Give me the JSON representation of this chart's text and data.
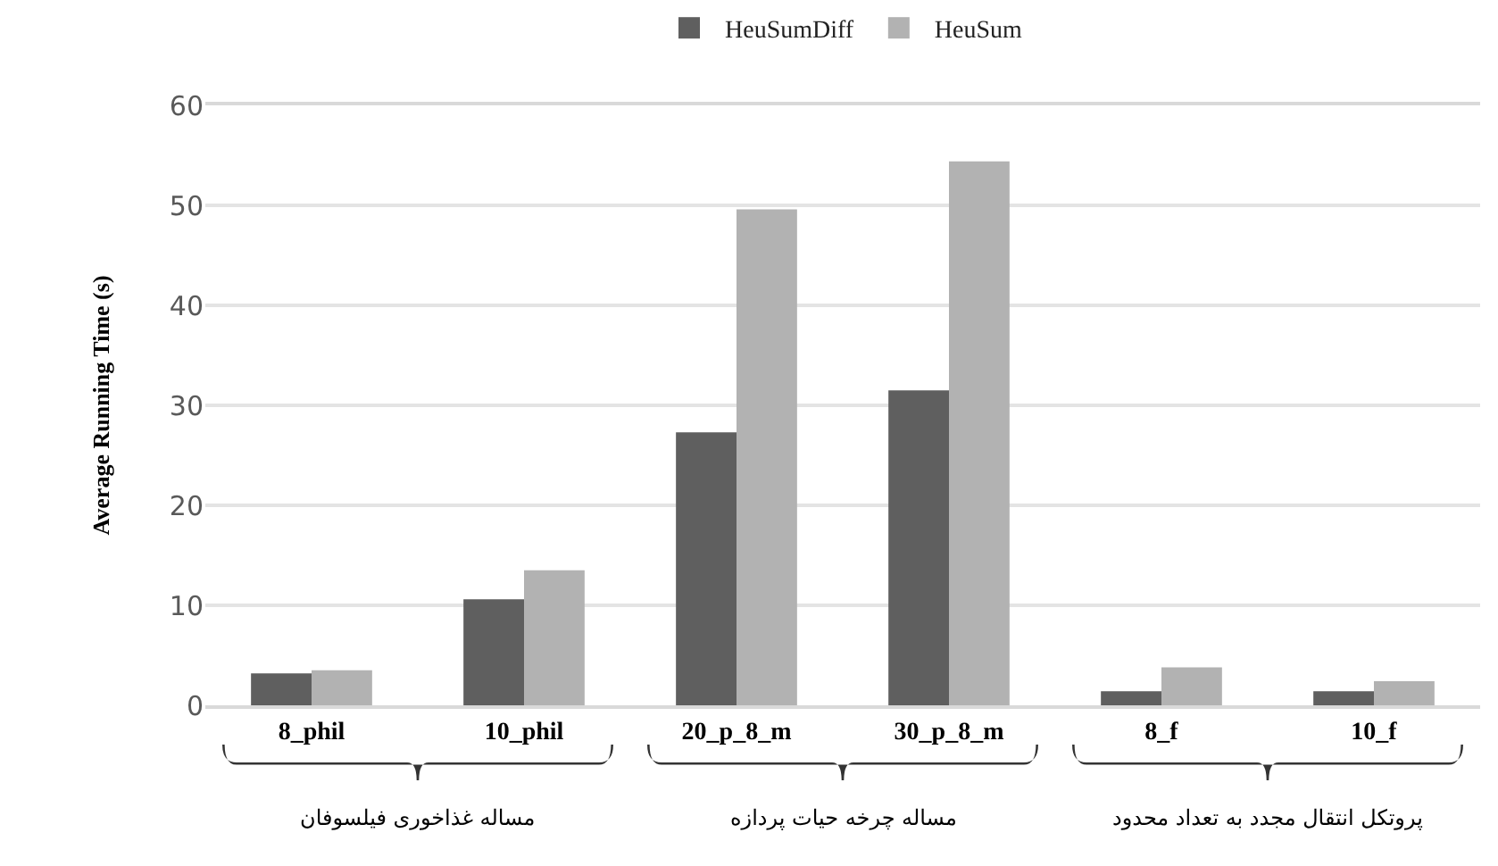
{
  "chart_data": {
    "type": "bar",
    "ylabel": "Average Running Time (s)",
    "categories": [
      "8_phil",
      "10_phil",
      "20_p_8_m",
      "30_p_8_m",
      "8_f",
      "10_f"
    ],
    "series": [
      {
        "name": "HeuSumDiff",
        "color": "#5f5f5f",
        "values": [
          3.2,
          10.6,
          27.3,
          31.5,
          1.4,
          1.4
        ]
      },
      {
        "name": "HeuSum",
        "color": "#b2b2b2",
        "values": [
          3.5,
          13.5,
          49.6,
          54.4,
          3.8,
          2.4
        ]
      }
    ],
    "ylim": [
      0,
      60
    ],
    "yticks": [
      0,
      10,
      20,
      30,
      40,
      50,
      60
    ],
    "grid": "y",
    "legend": "top",
    "annotations": [
      "مساله غذاخوری فیلسوفان",
      "مساله چرخه حیات پردازه",
      "پروتکل انتقال مجدد به تعداد محدود"
    ]
  }
}
